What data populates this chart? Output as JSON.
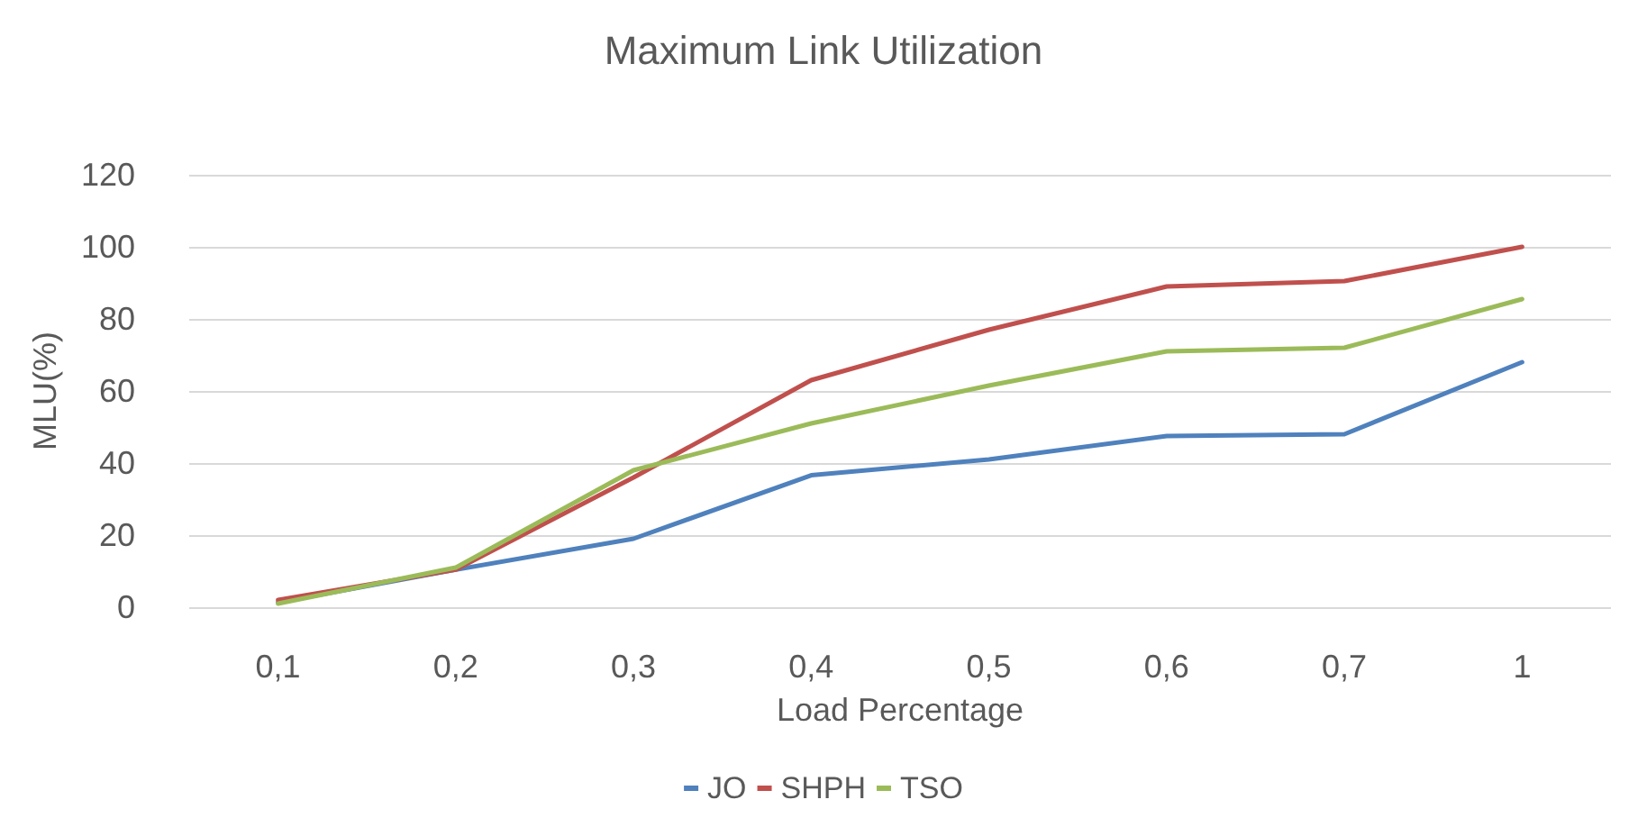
{
  "chart_data": {
    "type": "line",
    "title": "Maximum Link Utilization",
    "xlabel": "Load Percentage",
    "ylabel": "MLU(%)",
    "categories": [
      "0,1",
      "0,2",
      "0,3",
      "0,4",
      "0,5",
      "0,6",
      "0,7",
      "1"
    ],
    "series": [
      {
        "name": "JO",
        "color": "#4f81bd",
        "values": [
          1.3,
          10.4,
          19,
          36.6,
          41,
          47.5,
          48,
          68
        ]
      },
      {
        "name": "SHPH",
        "color": "#c0504d",
        "values": [
          2,
          10.4,
          36,
          63,
          77,
          89,
          90.5,
          100
        ]
      },
      {
        "name": "TSO",
        "color": "#9bbb59",
        "values": [
          1,
          11,
          38,
          51,
          61.5,
          71,
          72,
          85.5
        ]
      }
    ],
    "ylim": [
      0,
      120
    ],
    "yticks": [
      0,
      20,
      40,
      60,
      80,
      100,
      120
    ],
    "grid": "y",
    "legend": "bottom",
    "marker": "none",
    "line_style": "solid"
  }
}
